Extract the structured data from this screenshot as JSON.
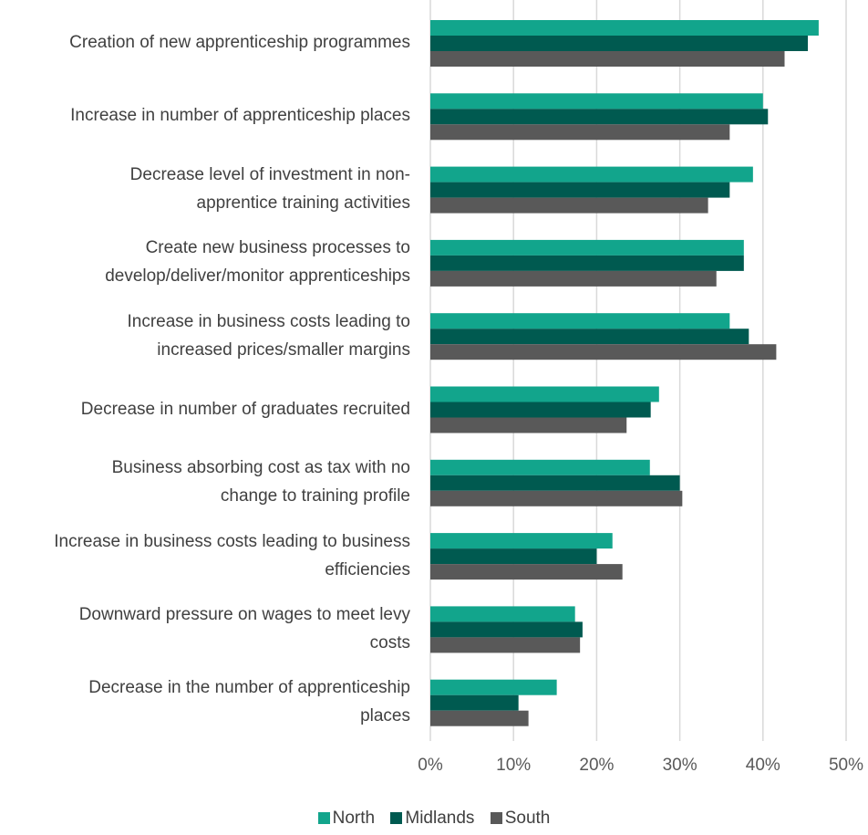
{
  "chart_data": {
    "type": "bar",
    "orientation": "horizontal",
    "categories": [
      "Creation of new apprenticeship programmes",
      "Increase in number of apprenticeship places",
      "Decrease level of investment in non-\napprentice training activities",
      "Create new business processes to\ndevelop/deliver/monitor apprenticeships",
      "Increase in business costs leading to\nincreased prices/smaller margins",
      "Decrease in number of graduates recruited",
      "Business absorbing cost as tax with no\nchange to training profile",
      "Increase in business costs leading to business\nefficiencies",
      "Downward pressure on wages to meet levy\ncosts",
      "Decrease in the number of apprenticeship\nplaces"
    ],
    "series": [
      {
        "name": "North",
        "color": "#12a58c",
        "values": [
          46.7,
          40.0,
          38.8,
          37.7,
          36.0,
          27.5,
          26.4,
          21.9,
          17.4,
          15.2
        ]
      },
      {
        "name": "Midlands",
        "color": "#005a50",
        "values": [
          45.4,
          40.6,
          36.0,
          37.7,
          38.3,
          26.5,
          30.0,
          20.0,
          18.3,
          10.6
        ]
      },
      {
        "name": "South",
        "color": "#595959",
        "values": [
          42.6,
          36.0,
          33.4,
          34.4,
          41.6,
          23.6,
          30.3,
          23.1,
          18.0,
          11.8
        ]
      }
    ],
    "xlim": [
      0,
      50
    ],
    "x_ticks": [
      "0%",
      "10%",
      "20%",
      "30%",
      "40%",
      "50%"
    ],
    "grid": true,
    "legend_position": "bottom"
  }
}
